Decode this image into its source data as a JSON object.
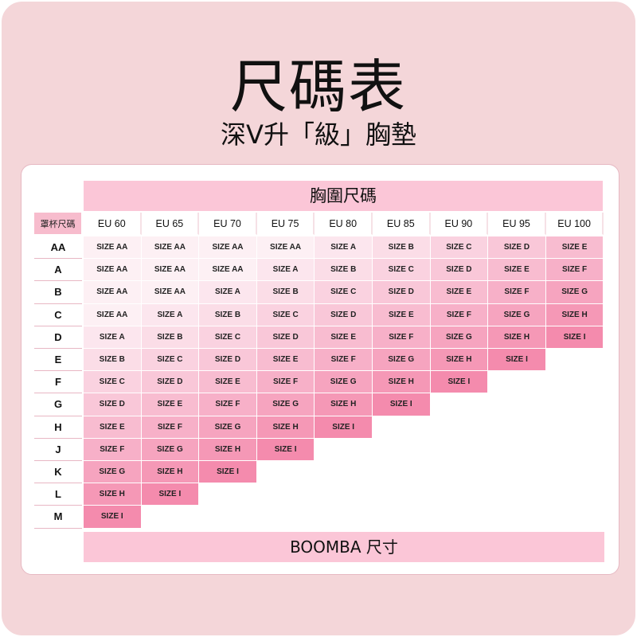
{
  "title": "尺碼表",
  "subtitle": "深V升「級」胸墊",
  "table": {
    "band_header": "胸圍尺碼",
    "corner_label": "罩杯尺碼",
    "columns": [
      "EU 60",
      "EU 65",
      "EU 70",
      "EU 75",
      "EU 80",
      "EU 85",
      "EU 90",
      "EU 95",
      "EU 100"
    ],
    "rows": [
      {
        "cup": "AA",
        "sizes": [
          "SIZE AA",
          "SIZE AA",
          "SIZE AA",
          "SIZE AA",
          "SIZE A",
          "SIZE B",
          "SIZE C",
          "SIZE D",
          "SIZE E"
        ]
      },
      {
        "cup": "A",
        "sizes": [
          "SIZE AA",
          "SIZE AA",
          "SIZE AA",
          "SIZE A",
          "SIZE B",
          "SIZE C",
          "SIZE D",
          "SIZE E",
          "SIZE F"
        ]
      },
      {
        "cup": "B",
        "sizes": [
          "SIZE AA",
          "SIZE AA",
          "SIZE A",
          "SIZE B",
          "SIZE C",
          "SIZE D",
          "SIZE E",
          "SIZE F",
          "SIZE G"
        ]
      },
      {
        "cup": "C",
        "sizes": [
          "SIZE AA",
          "SIZE A",
          "SIZE B",
          "SIZE C",
          "SIZE D",
          "SIZE E",
          "SIZE F",
          "SIZE G",
          "SIZE H"
        ]
      },
      {
        "cup": "D",
        "sizes": [
          "SIZE A",
          "SIZE B",
          "SIZE C",
          "SIZE D",
          "SIZE E",
          "SIZE F",
          "SIZE G",
          "SIZE H",
          "SIZE I"
        ]
      },
      {
        "cup": "E",
        "sizes": [
          "SIZE B",
          "SIZE C",
          "SIZE D",
          "SIZE E",
          "SIZE F",
          "SIZE G",
          "SIZE H",
          "SIZE I"
        ]
      },
      {
        "cup": "F",
        "sizes": [
          "SIZE C",
          "SIZE D",
          "SIZE E",
          "SIZE F",
          "SIZE G",
          "SIZE H",
          "SIZE I"
        ]
      },
      {
        "cup": "G",
        "sizes": [
          "SIZE D",
          "SIZE E",
          "SIZE F",
          "SIZE G",
          "SIZE H",
          "SIZE I"
        ]
      },
      {
        "cup": "H",
        "sizes": [
          "SIZE E",
          "SIZE F",
          "SIZE G",
          "SIZE H",
          "SIZE I"
        ]
      },
      {
        "cup": "J",
        "sizes": [
          "SIZE F",
          "SIZE G",
          "SIZE H",
          "SIZE I"
        ]
      },
      {
        "cup": "K",
        "sizes": [
          "SIZE G",
          "SIZE H",
          "SIZE I"
        ]
      },
      {
        "cup": "L",
        "sizes": [
          "SIZE H",
          "SIZE I"
        ]
      },
      {
        "cup": "M",
        "sizes": [
          "SIZE I"
        ]
      }
    ],
    "size_colors": {
      "SIZE AA": "#fdf0f4",
      "SIZE A": "#fce6ee",
      "SIZE B": "#fbdde7",
      "SIZE C": "#fad2e0",
      "SIZE D": "#f9c7d8",
      "SIZE E": "#f8bcd0",
      "SIZE F": "#f7b0c8",
      "SIZE G": "#f6a4bf",
      "SIZE H": "#f598b6",
      "SIZE I": "#f48bad"
    },
    "footer": "BOOMBA 尺寸"
  }
}
